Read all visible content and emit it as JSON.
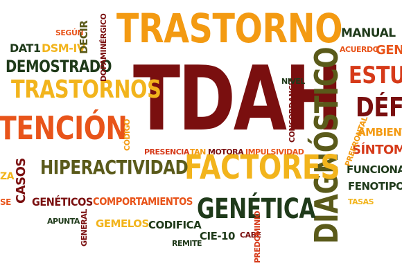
{
  "colors": {
    "maroon": "#7a0f0f",
    "orange": "#f39a12",
    "deep_orange": "#e8541a",
    "red": "#d63a19",
    "olive": "#5a5a1a",
    "dark_green": "#1f3a1a",
    "yellow": "#f2b41c"
  },
  "words": {
    "trastorno": "TRASTORNO",
    "tdah": "TDAH",
    "diagnostico": "DIAGNÓSTICO",
    "factores": "FACTORES",
    "genetica": "GENÉTICA",
    "hiperactividad": "HIPERACTIVIDAD",
    "trastornos": "TRASTORNOS",
    "tencion": "TENCIÓN",
    "demostrado": "DEMOSTRADO",
    "dat1": "DAT1",
    "dsm_iv": "DSM-IV",
    "segun": "SEGÚN",
    "decir": "DECIR",
    "dopaminergico": "DOPAMINÉRGICO",
    "manual": "MANUAL",
    "acuerdo": "ACUERDO",
    "gen": "GEN",
    "estu": "ESTU",
    "defi": "DÉFI",
    "ambiente": "AMBIENTE",
    "sintomas": "SÍNTOMAS",
    "funcional": "FUNCIONAL",
    "fenotipo": "FENOTIPO",
    "tasas": "TASAS",
    "prefrontal": "PREFRONTAL",
    "concordancia": "CONCORDANCIA",
    "nivel": "NIVEL",
    "codigo": "CÓDIGO",
    "presencia": "PRESENCIA",
    "tan": "TAN",
    "motora": "MOTORA",
    "impulsividad": "IMPULSIVIDAD",
    "casos": "CASOS",
    "za": "ZA",
    "se": "SE",
    "geneticos": "GENÉTICOS",
    "comportamientos": "COMPORTAMIENTOS",
    "apunta": "APUNTA",
    "general": "GENERAL",
    "gemelos": "GEMELOS",
    "codifica": "CODIFICA",
    "cie10": "CIE-10",
    "cabe": "CABE",
    "remite": "REMITE",
    "predominio": "PREDOMINIO"
  }
}
